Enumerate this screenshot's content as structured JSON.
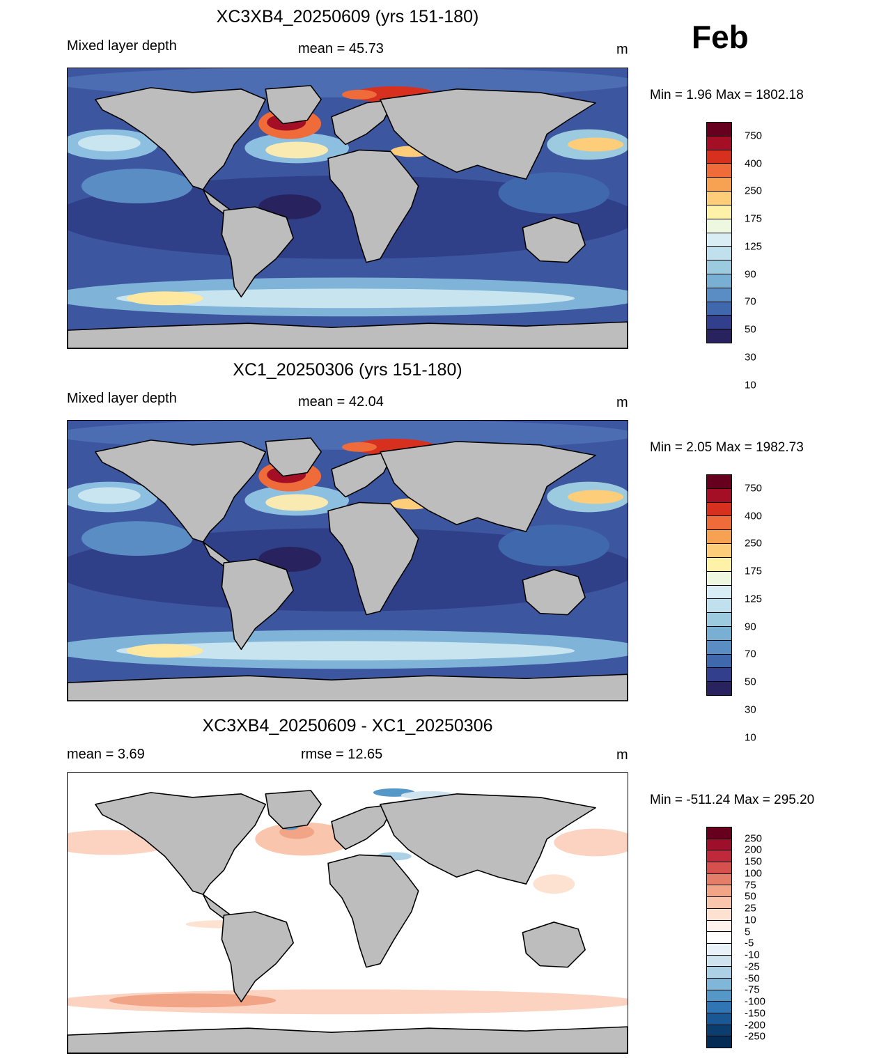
{
  "month": "Feb",
  "panels": [
    {
      "title": "XC3XB4_20250609 (yrs 151-180)",
      "left_label": "Mixed layer depth",
      "center_label": "mean =  45.73",
      "units": "m",
      "min_max": "Min =   1.96 Max = 1802.18",
      "kind": "abs"
    },
    {
      "title": "XC1_20250306 (yrs 151-180)",
      "left_label": "Mixed layer depth",
      "center_label": "mean =  42.04",
      "units": "m",
      "min_max": "Min =   2.05 Max = 1982.73",
      "kind": "abs"
    },
    {
      "title": "XC3XB4_20250609 - XC1_20250306",
      "left_label": "mean =   3.69",
      "center_label": "rmse =  12.65",
      "units": "m",
      "min_max": "Min = -511.24 Max = 295.20",
      "kind": "diff"
    }
  ],
  "colorbars": {
    "abs": {
      "labels": [
        "750",
        "400",
        "250",
        "175",
        "125",
        "90",
        "70",
        "50",
        "30",
        "10"
      ],
      "colors": [
        "#67001f",
        "#a50f26",
        "#d7301f",
        "#ef6b3a",
        "#f7a153",
        "#fdcd7a",
        "#fef2a8",
        "#eef7df",
        "#d9eef4",
        "#bfe0ec",
        "#9ccbe0",
        "#7aafd4",
        "#5a8dc4",
        "#4068ad",
        "#313f8c",
        "#28235e"
      ]
    },
    "diff": {
      "labels": [
        "250",
        "200",
        "150",
        "100",
        "75",
        "50",
        "25",
        "10",
        "5",
        "-5",
        "-10",
        "-25",
        "-50",
        "-75",
        "-100",
        "-150",
        "-200",
        "-250"
      ],
      "colors": [
        "#67001f",
        "#9e0f2c",
        "#c0283b",
        "#d6504e",
        "#e57e68",
        "#f2a487",
        "#f9c6ad",
        "#fde2d2",
        "#fff2ec",
        "#ffffff",
        "#e9f2f8",
        "#cfe3ef",
        "#acd0e4",
        "#80b7d8",
        "#5598c7",
        "#3076b4",
        "#195795",
        "#0b3d6e",
        "#052c54"
      ]
    }
  }
}
